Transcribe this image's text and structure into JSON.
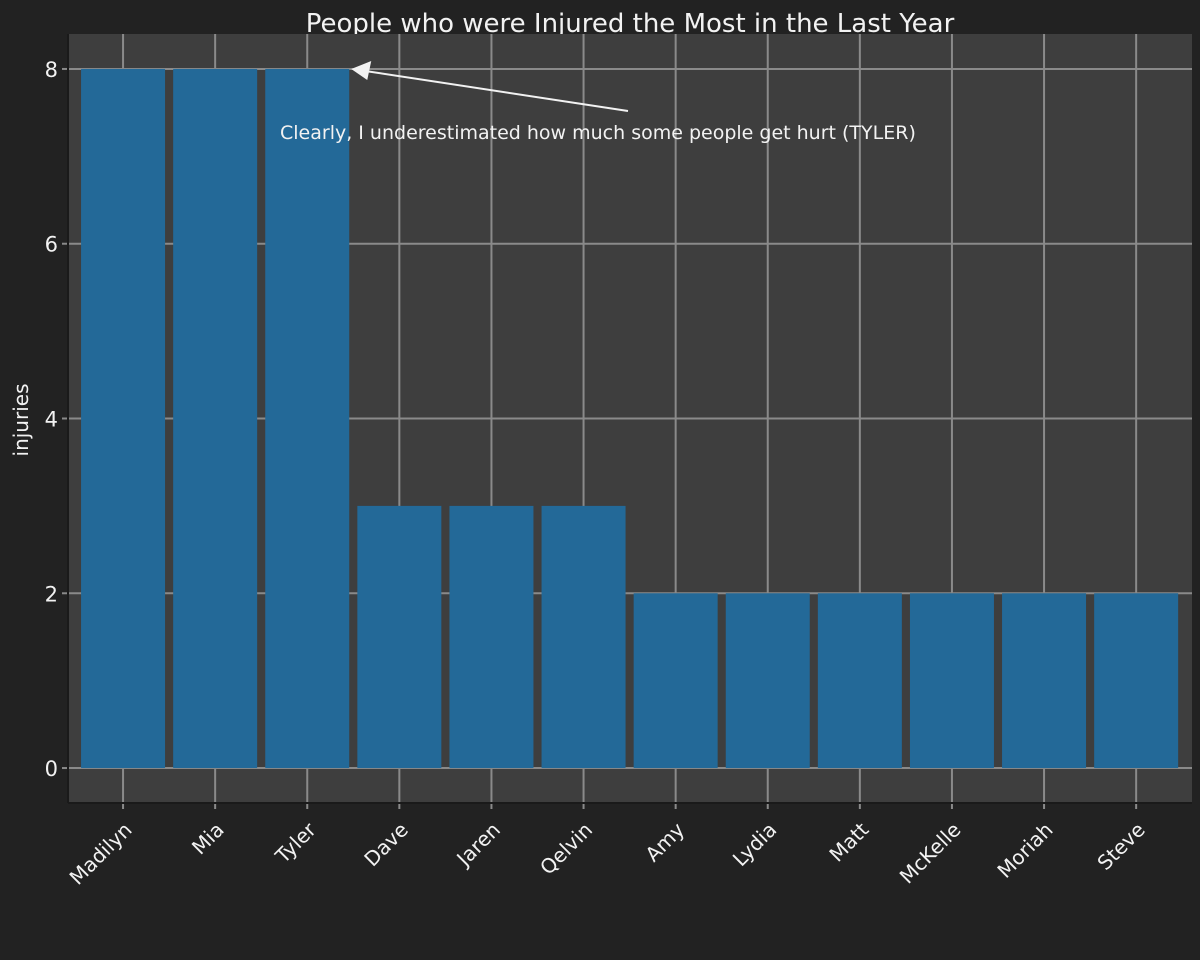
{
  "chart_data": {
    "type": "bar",
    "title": "People who were Injured the Most in the Last Year",
    "xlabel": "",
    "ylabel": "injuries",
    "categories": [
      "Madilyn",
      "Mia",
      "Tyler",
      "Dave",
      "Jaren",
      "Qelvin",
      "Amy",
      "Lydia",
      "Matt",
      "McKelle",
      "Moriah",
      "Steve"
    ],
    "values": [
      8,
      8,
      8,
      3,
      3,
      3,
      2,
      2,
      2,
      2,
      2,
      2
    ],
    "ylim": [
      -0.4,
      8.4
    ],
    "yticks": [
      0,
      2,
      4,
      6,
      8
    ],
    "grid": true,
    "annotation": {
      "text": "Clearly, I underestimated how much some people get hurt (TYLER)",
      "target_category": "Tyler",
      "target_value": 8
    },
    "colors": {
      "figure_bg": "#222222",
      "panel_bg": "#3e3e3e",
      "bar": "#236998",
      "grid": "#8a8a8a",
      "text": "#f2f2f2",
      "axis": "#1a1a1a"
    }
  }
}
